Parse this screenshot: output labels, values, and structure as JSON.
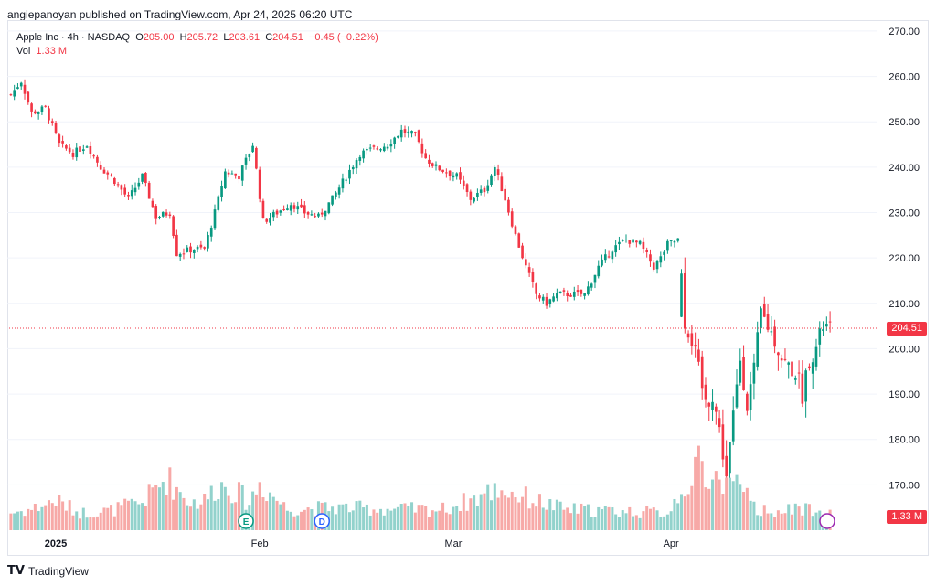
{
  "header": {
    "text": "angiepanoyan published on TradingView.com, Apr 24, 2025 06:20 UTC"
  },
  "legend": {
    "symbol": "Apple Inc · 4h · NASDAQ",
    "o_label": "O",
    "o": "205.00",
    "h_label": "H",
    "h": "205.72",
    "l_label": "L",
    "l": "203.61",
    "c_label": "C",
    "c": "204.51",
    "change": "−0.45 (−0.22%)",
    "vol_label": "Vol",
    "vol": "1.33 M"
  },
  "colors": {
    "up": "#089981",
    "down": "#f23645",
    "vol_up": "#92d2cc",
    "vol_down": "#f7a9a7",
    "grid": "#f0f3fa"
  },
  "events": [
    {
      "letter": "E",
      "x_index": 68,
      "name": "earnings-marker"
    },
    {
      "letter": "D",
      "x_index": 90,
      "name": "dividend-marker"
    }
  ],
  "footer": {
    "brand": "TradingView",
    "logo": "tradingview-logo"
  },
  "chart_data": {
    "type": "candlestick",
    "title": "Apple Inc · 4h · NASDAQ",
    "ylim": [
      160,
      272
    ],
    "yticks": [
      "270.00",
      "260.00",
      "250.00",
      "240.00",
      "230.00",
      "220.00",
      "210.00",
      "200.00",
      "190.00",
      "180.00",
      "170.00"
    ],
    "ytick_values": [
      270,
      260,
      250,
      240,
      230,
      220,
      210,
      200,
      190,
      180,
      170
    ],
    "xticks": [
      {
        "label": "2025",
        "index": 13
      },
      {
        "label": "Feb",
        "index": 72
      },
      {
        "label": "Mar",
        "index": 128
      },
      {
        "label": "Apr",
        "index": 191
      }
    ],
    "last_price": "204.51",
    "last_volume": "1.33 M",
    "grid": true,
    "anchors": [
      [
        0,
        256
      ],
      [
        3,
        259
      ],
      [
        6,
        252
      ],
      [
        10,
        253
      ],
      [
        14,
        245
      ],
      [
        18,
        243
      ],
      [
        22,
        245
      ],
      [
        26,
        240
      ],
      [
        30,
        237
      ],
      [
        34,
        233
      ],
      [
        38,
        238
      ],
      [
        42,
        229
      ],
      [
        46,
        230
      ],
      [
        48,
        221
      ],
      [
        53,
        222
      ],
      [
        56,
        222
      ],
      [
        59,
        230
      ],
      [
        62,
        239
      ],
      [
        66,
        238
      ],
      [
        70,
        245
      ],
      [
        73,
        228
      ],
      [
        77,
        230
      ],
      [
        81,
        232
      ],
      [
        85,
        230
      ],
      [
        89,
        229
      ],
      [
        93,
        233
      ],
      [
        97,
        238
      ],
      [
        101,
        243
      ],
      [
        105,
        244
      ],
      [
        109,
        245
      ],
      [
        113,
        248
      ],
      [
        117,
        247
      ],
      [
        120,
        242
      ],
      [
        123,
        240
      ],
      [
        126,
        239
      ],
      [
        129,
        238
      ],
      [
        133,
        233
      ],
      [
        137,
        235
      ],
      [
        140,
        240
      ],
      [
        143,
        233
      ],
      [
        146,
        225
      ],
      [
        149,
        218
      ],
      [
        152,
        212
      ],
      [
        155,
        210
      ],
      [
        158,
        212
      ],
      [
        162,
        212
      ],
      [
        166,
        212
      ],
      [
        170,
        218
      ],
      [
        174,
        222
      ],
      [
        178,
        224
      ],
      [
        182,
        223
      ],
      [
        186,
        218
      ],
      [
        188,
        220
      ],
      [
        190,
        223
      ],
      [
        193,
        224
      ],
      [
        195,
        206
      ],
      [
        197,
        202
      ],
      [
        199,
        195
      ],
      [
        201,
        188
      ],
      [
        203,
        190
      ],
      [
        205,
        182
      ],
      [
        207,
        172
      ],
      [
        209,
        185
      ],
      [
        211,
        198
      ],
      [
        213,
        188
      ],
      [
        215,
        195
      ],
      [
        217,
        208
      ],
      [
        219,
        205
      ],
      [
        221,
        202
      ],
      [
        223,
        198
      ],
      [
        225,
        196
      ],
      [
        227,
        195
      ],
      [
        229,
        190
      ],
      [
        231,
        198
      ],
      [
        233,
        200
      ],
      [
        235,
        205
      ],
      [
        237,
        204.5
      ]
    ],
    "volume_peaks": [
      [
        0,
        0.5
      ],
      [
        6,
        0.6
      ],
      [
        13,
        0.85
      ],
      [
        20,
        0.5
      ],
      [
        28,
        0.55
      ],
      [
        38,
        0.8
      ],
      [
        45,
        1.5
      ],
      [
        52,
        0.8
      ],
      [
        56,
        0.85
      ],
      [
        60,
        1.3
      ],
      [
        64,
        1.2
      ],
      [
        69,
        0.8
      ],
      [
        72,
        1.35
      ],
      [
        80,
        0.6
      ],
      [
        95,
        0.65
      ],
      [
        110,
        0.6
      ],
      [
        125,
        0.6
      ],
      [
        134,
        0.9
      ],
      [
        141,
        1.2
      ],
      [
        150,
        0.9
      ],
      [
        160,
        0.6
      ],
      [
        175,
        0.55
      ],
      [
        190,
        0.5
      ],
      [
        196,
        1.5
      ],
      [
        200,
        1.9
      ],
      [
        204,
        1.3
      ],
      [
        208,
        1.6
      ],
      [
        212,
        1.0
      ],
      [
        216,
        0.6
      ],
      [
        224,
        0.55
      ],
      [
        233,
        0.65
      ]
    ],
    "gap_after_index": 193
  }
}
